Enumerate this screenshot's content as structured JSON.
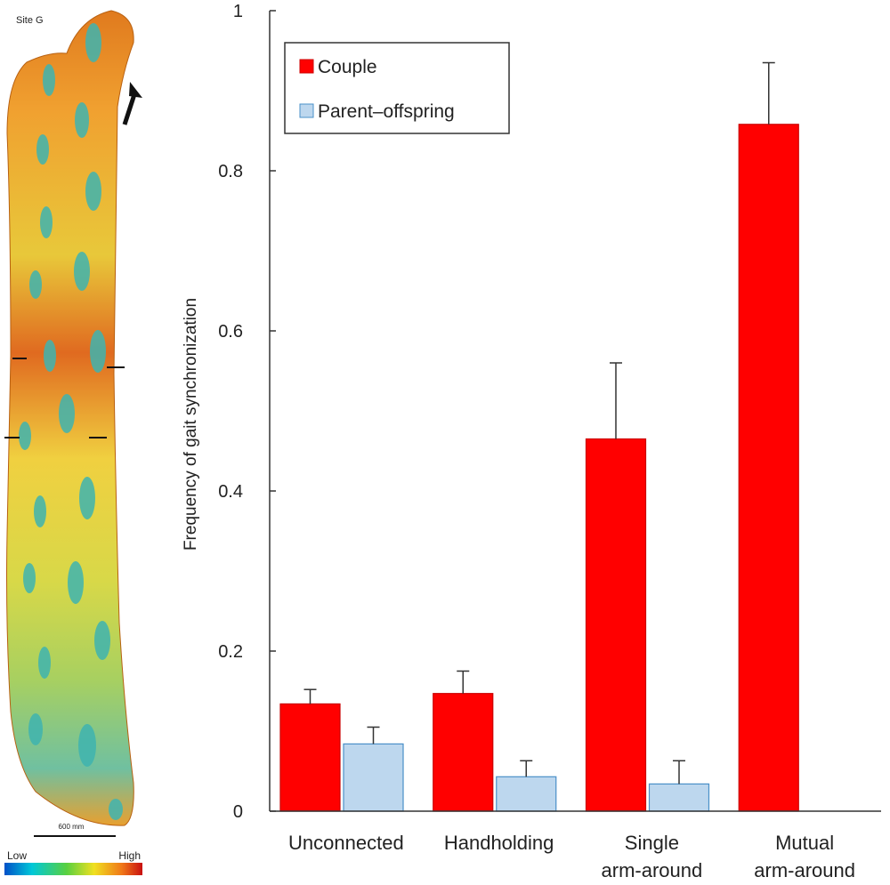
{
  "map_panel": {
    "site_label": "Site G",
    "scale_label": "600 mm",
    "colorbar": {
      "low_label": "Low",
      "high_label": "High"
    }
  },
  "chart_data": {
    "type": "bar",
    "title": "",
    "xlabel": "",
    "ylabel": "Frequency of gait synchronization",
    "ylim": [
      0,
      1
    ],
    "y_ticks": [
      {
        "value": 0,
        "label": "0"
      },
      {
        "value": 0.2,
        "label": "0.2"
      },
      {
        "value": 0.4,
        "label": "0.4"
      },
      {
        "value": 0.6,
        "label": "0.6"
      },
      {
        "value": 0.8,
        "label": "0.8"
      },
      {
        "value": 1,
        "label": "1"
      }
    ],
    "categories": [
      {
        "lines": [
          "Unconnected"
        ]
      },
      {
        "lines": [
          "Handholding"
        ]
      },
      {
        "lines": [
          "Single",
          "arm-around"
        ]
      },
      {
        "lines": [
          "Mutual",
          "arm-around"
        ]
      }
    ],
    "series": [
      {
        "name": "Couple",
        "color": "#ff0000",
        "stroke": "#cc0000",
        "values": [
          0.134,
          0.147,
          0.465,
          0.858
        ],
        "errors": [
          0.018,
          0.028,
          0.095,
          0.077
        ]
      },
      {
        "name": "Parent–offspring",
        "color": "#bdd7ee",
        "stroke": "#4a90c8",
        "values": [
          0.084,
          0.043,
          0.034,
          null
        ],
        "errors": [
          0.021,
          0.02,
          0.029,
          null
        ]
      }
    ],
    "legend_position": "top-left",
    "grid": false
  }
}
